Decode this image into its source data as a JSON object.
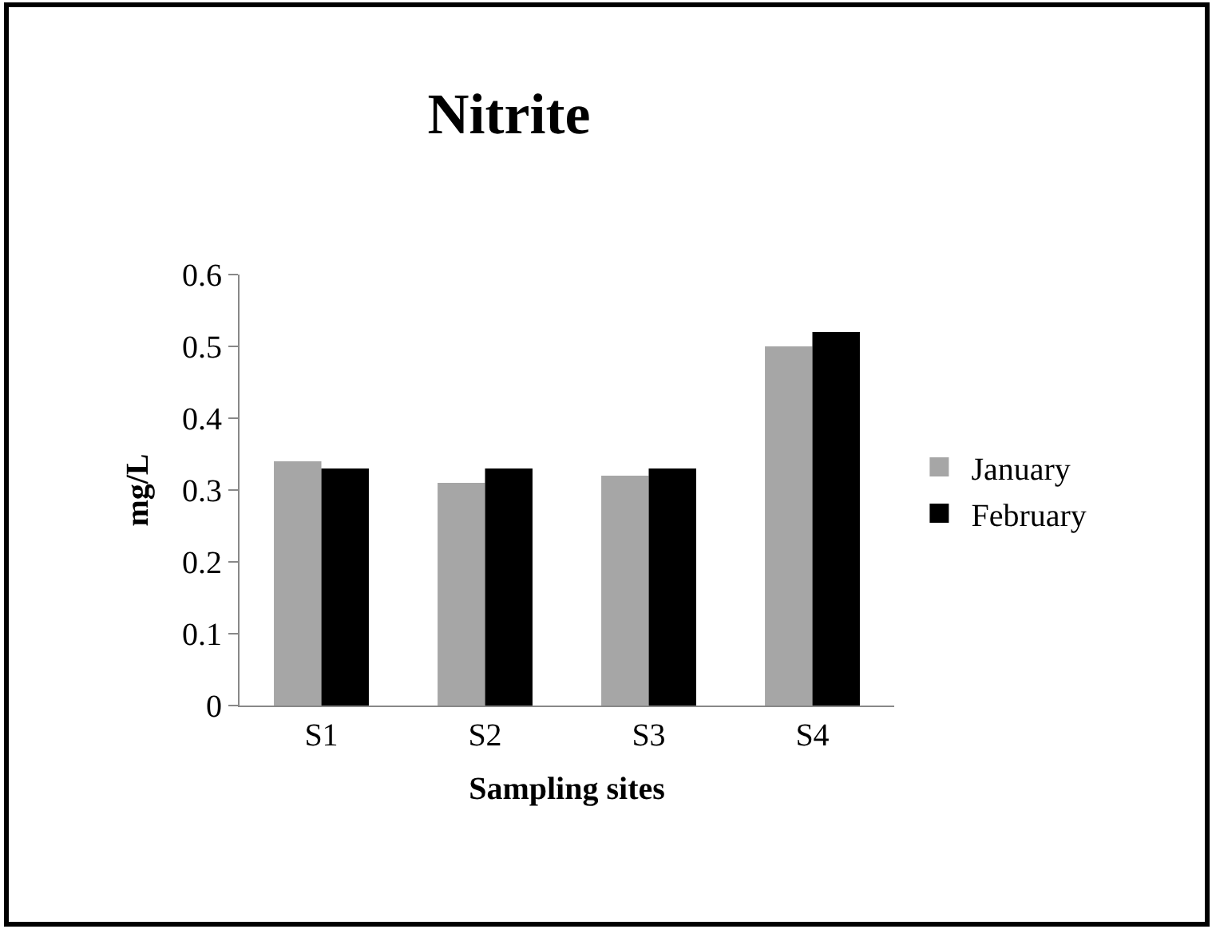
{
  "chart_data": {
    "type": "bar",
    "title": "Nitrite",
    "xlabel": "Sampling sites",
    "ylabel": "mg/L",
    "categories": [
      "S1",
      "S2",
      "S3",
      "S4"
    ],
    "series": [
      {
        "name": "January",
        "color": "#a6a6a6",
        "values": [
          0.34,
          0.31,
          0.32,
          0.5
        ]
      },
      {
        "name": "February",
        "color": "#000000",
        "values": [
          0.33,
          0.33,
          0.33,
          0.52
        ]
      }
    ],
    "ylim": [
      0,
      0.6
    ],
    "yticks": [
      0,
      0.1,
      0.2,
      0.3,
      0.4,
      0.5,
      0.6
    ],
    "legend": "right"
  }
}
